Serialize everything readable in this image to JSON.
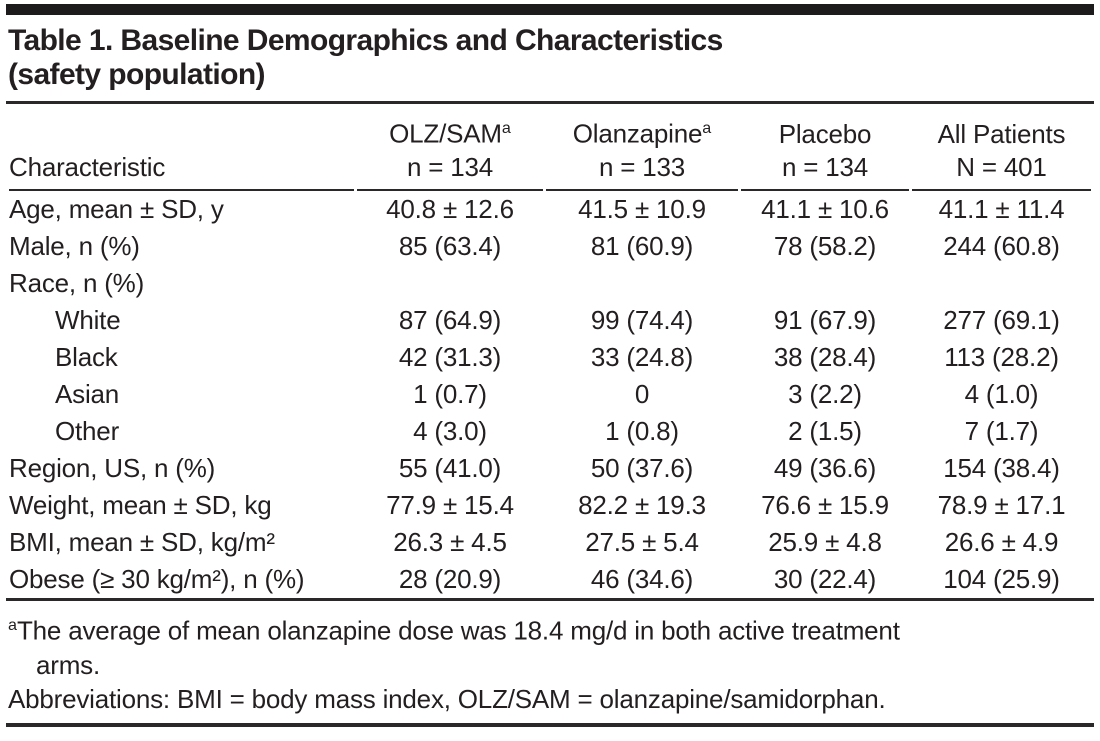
{
  "title": {
    "line1": "Table 1. Baseline Demographics and Characteristics",
    "line2": "(safety population)"
  },
  "table": {
    "columns": [
      {
        "label": "Characteristic",
        "sup": "",
        "sub": ""
      },
      {
        "label": "OLZ/SAM",
        "sup": "a",
        "sub": "n = 134"
      },
      {
        "label": "Olanzapine",
        "sup": "a",
        "sub": "n = 133"
      },
      {
        "label": "Placebo",
        "sup": "",
        "sub": "n = 134"
      },
      {
        "label": "All Patients",
        "sup": "",
        "sub": "N = 401"
      }
    ],
    "rows": [
      {
        "label": "Age, mean ± SD, y",
        "indent": false,
        "values": [
          "40.8 ± 12.6",
          "41.5 ± 10.9",
          "41.1 ± 10.6",
          "41.1 ± 11.4"
        ]
      },
      {
        "label": "Male, n (%)",
        "indent": false,
        "values": [
          "85 (63.4)",
          "81 (60.9)",
          "78 (58.2)",
          "244 (60.8)"
        ]
      },
      {
        "label": "Race, n (%)",
        "indent": false,
        "values": [
          "",
          "",
          "",
          ""
        ]
      },
      {
        "label": "White",
        "indent": true,
        "values": [
          "87 (64.9)",
          "99 (74.4)",
          "91 (67.9)",
          "277 (69.1)"
        ]
      },
      {
        "label": "Black",
        "indent": true,
        "values": [
          "42 (31.3)",
          "33 (24.8)",
          "38 (28.4)",
          "113 (28.2)"
        ]
      },
      {
        "label": "Asian",
        "indent": true,
        "values": [
          "1 (0.7)",
          "0",
          "3 (2.2)",
          "4 (1.0)"
        ]
      },
      {
        "label": "Other",
        "indent": true,
        "values": [
          "4 (3.0)",
          "1 (0.8)",
          "2 (1.5)",
          "7 (1.7)"
        ]
      },
      {
        "label": "Region, US, n (%)",
        "indent": false,
        "values": [
          "55 (41.0)",
          "50 (37.6)",
          "49 (36.6)",
          "154 (38.4)"
        ]
      },
      {
        "label": "Weight, mean ± SD, kg",
        "indent": false,
        "values": [
          "77.9 ± 15.4",
          "82.2 ± 19.3",
          "76.6 ± 15.9",
          "78.9 ± 17.1"
        ]
      },
      {
        "label": "BMI, mean ± SD, kg/m²",
        "indent": false,
        "values": [
          "26.3 ± 4.5",
          "27.5 ± 5.4",
          "25.9 ± 4.8",
          "26.6 ± 4.9"
        ]
      },
      {
        "label": "Obese (≥ 30 kg/m²), n (%)",
        "indent": false,
        "values": [
          "28 (20.9)",
          "46 (34.6)",
          "30 (22.4)",
          "104 (25.9)"
        ]
      }
    ]
  },
  "footnotes": {
    "marker": "a",
    "line1": "The average of mean olanzapine dose was 18.4 mg/d in both active treatment",
    "line2": "arms.",
    "abbreviations": "Abbreviations: BMI = body mass index, OLZ/SAM = olanzapine/samidorphan."
  },
  "colors": {
    "text": "#231f20",
    "rule": "#2b2829",
    "top_bar": "#1d1b1c",
    "background": "#ffffff"
  }
}
